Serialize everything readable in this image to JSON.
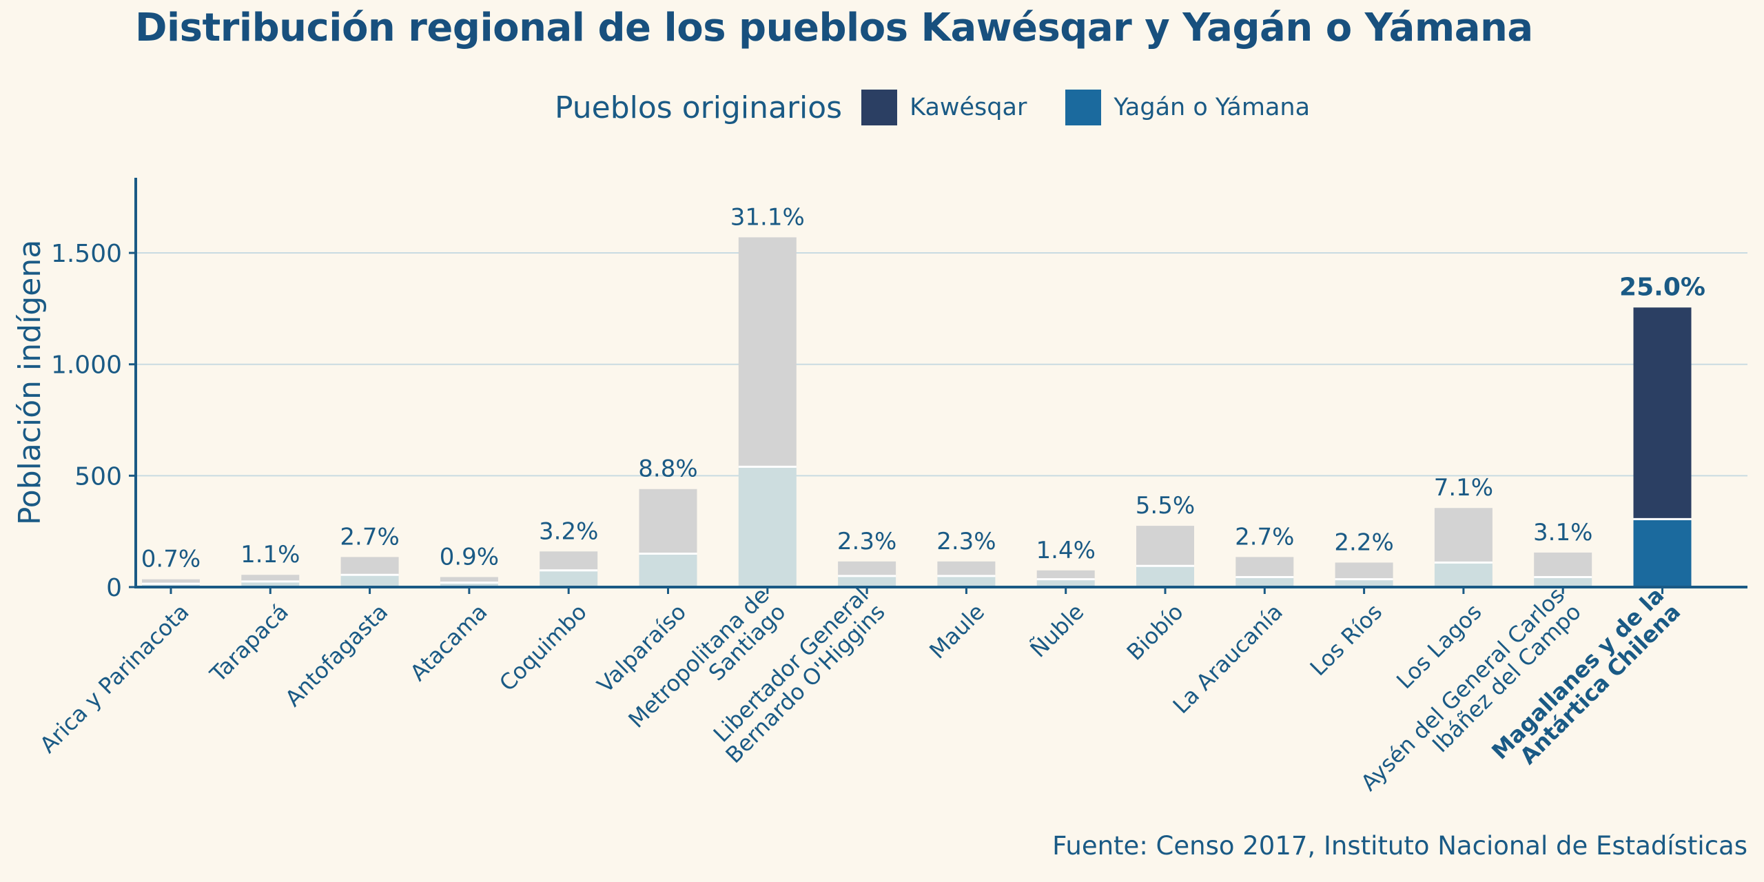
{
  "chart_data": {
    "type": "bar",
    "stacked": true,
    "title": "Distribución regional de los pueblos Kawésqar y Yagán o Yámana",
    "ylabel": "Población indígena",
    "xlabel": "",
    "ylim": [
      0,
      1820
    ],
    "yticks": [
      0,
      500,
      1000,
      1500
    ],
    "ytick_labels": [
      "0",
      "500",
      "1.000",
      "1.500"
    ],
    "grid": "horizontal",
    "legend": {
      "title": "Pueblos originarios",
      "placement": "top-center",
      "entries": [
        {
          "name": "Kawésqar",
          "color": "#2b3f63"
        },
        {
          "name": "Yagán o Yámana",
          "color": "#1b6a9e"
        }
      ]
    },
    "categories": [
      "Arica y Parinacota",
      "Tarapacá",
      "Antofagasta",
      "Atacama",
      "Coquimbo",
      "Valparaíso",
      "Metropolitana de Santiago",
      "Libertador General Bernardo O'Higgins",
      "Maule",
      "Ñuble",
      "Biobío",
      "La Araucanía",
      "Los Ríos",
      "Los Lagos",
      "Aysén del General Carlos Ibáñez del Campo",
      "Magallanes y de la Antártica Chilena"
    ],
    "category_lines": [
      [
        "Arica y Parinacota"
      ],
      [
        "Tarapacá"
      ],
      [
        "Antofagasta"
      ],
      [
        "Atacama"
      ],
      [
        "Coquimbo"
      ],
      [
        "Valparaíso"
      ],
      [
        "Metropolitana de",
        "Santiago"
      ],
      [
        "Libertador General",
        "Bernardo O'Higgins"
      ],
      [
        "Maule"
      ],
      [
        "Ñuble"
      ],
      [
        "Biobío"
      ],
      [
        "La Araucanía"
      ],
      [
        "Los Ríos"
      ],
      [
        "Los Lagos"
      ],
      [
        "Aysén del General Carlos",
        "Ibáñez del Campo"
      ],
      [
        "Magallanes y de la",
        "Antártica Chilena"
      ]
    ],
    "highlight": "Magallanes y de la Antártica Chilena",
    "series": [
      {
        "name": "Kawésqar",
        "values": [
          20,
          30,
          80,
          25,
          85,
          290,
          1030,
          65,
          65,
          40,
          180,
          90,
          75,
          245,
          110,
          950
        ]
      },
      {
        "name": "Yagán o Yámana",
        "values": [
          15,
          25,
          55,
          20,
          75,
          150,
          540,
          50,
          50,
          35,
          95,
          45,
          35,
          110,
          45,
          305
        ]
      }
    ],
    "percent_labels": [
      "0.7%",
      "1.1%",
      "2.7%",
      "0.9%",
      "3.2%",
      "8.8%",
      "31.1%",
      "2.3%",
      "2.3%",
      "1.4%",
      "5.5%",
      "2.7%",
      "2.2%",
      "7.1%",
      "3.1%",
      "25.0%"
    ],
    "colors": {
      "kawesqar": "#2b3f63",
      "yagan": "#1b6a9e",
      "muted_top": "#d3d3d3",
      "muted_bottom": "#cddddf",
      "text": "#1a5a85",
      "axis": "#1a5a85",
      "grid": "#c9dbe2",
      "background": "#fcf7ed"
    }
  },
  "source": "Fuente: Censo 2017, Instituto Nacional de Estadísticas"
}
